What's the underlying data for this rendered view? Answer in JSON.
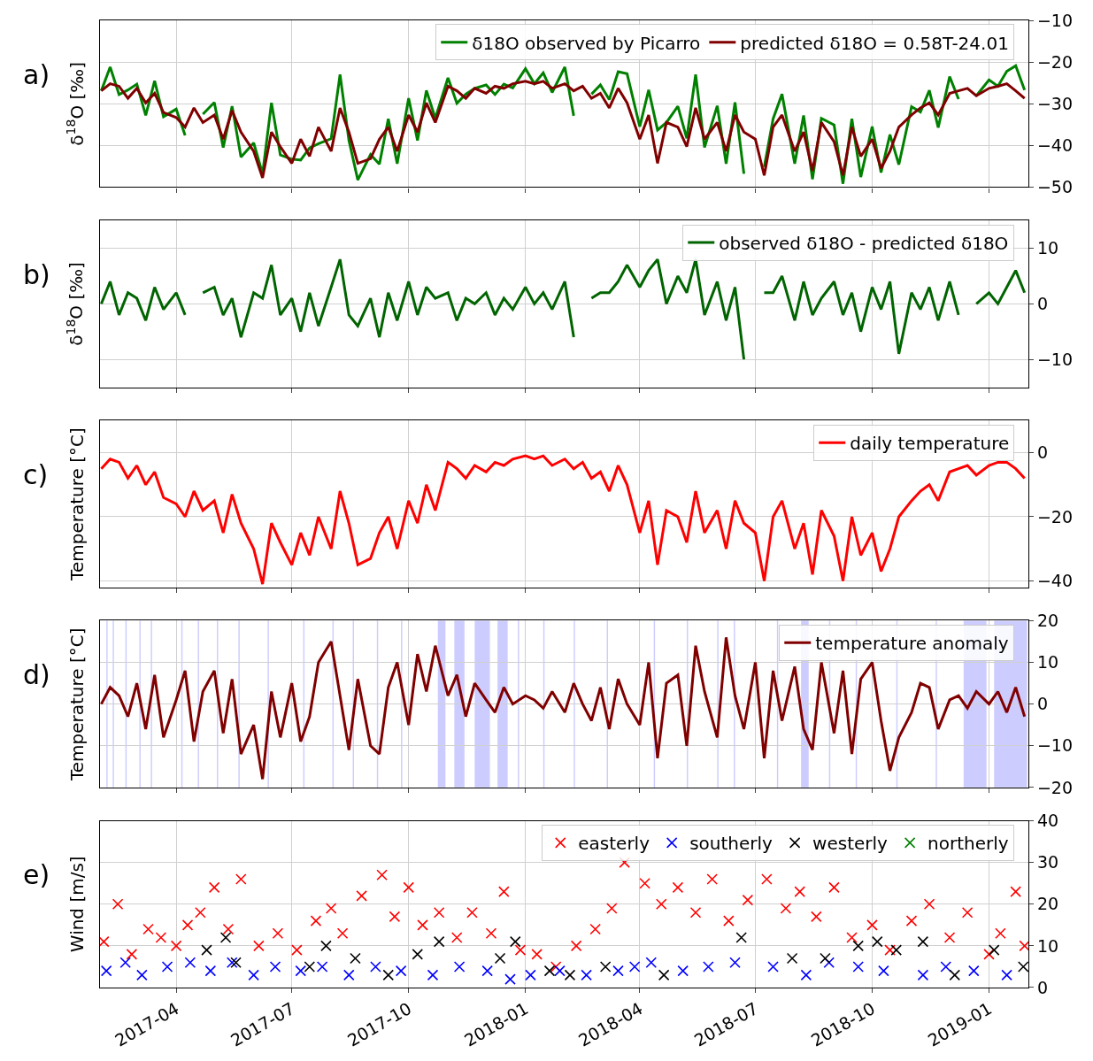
{
  "chart_data": [
    {
      "type": "line",
      "ylabel": "δ$^{18}$O [‰]",
      "annotations": [
        "a)"
      ],
      "legend": "top right",
      "grid": true,
      "tick_labels": "y",
      "line_style": "solid",
      "xlim": [
        "2017-01-31",
        "2019-02-01"
      ],
      "xticks": [
        "2017-04-01",
        "2017-07-01",
        "2017-10-01",
        "2018-01-01",
        "2018-04-01",
        "2018-07-01",
        "2018-10-01",
        "2019-01-01"
      ],
      "ylim": [
        -50,
        -10
      ],
      "yticks": [
        -50,
        -40,
        -30,
        -20,
        -10
      ],
      "x": [
        "2017-02-01",
        "2017-02-08",
        "2017-02-15",
        "2017-02-22",
        "2017-03-01",
        "2017-03-08",
        "2017-03-15",
        "2017-03-22",
        "2017-04-01",
        "2017-04-08",
        "2017-04-15",
        "2017-04-22",
        "2017-05-01",
        "2017-05-08",
        "2017-05-15",
        "2017-05-22",
        "2017-06-01",
        "2017-06-08",
        "2017-06-15",
        "2017-06-22",
        "2017-07-01",
        "2017-07-08",
        "2017-07-15",
        "2017-07-22",
        "2017-08-01",
        "2017-08-08",
        "2017-08-15",
        "2017-08-22",
        "2017-09-01",
        "2017-09-08",
        "2017-09-15",
        "2017-09-22",
        "2017-10-01",
        "2017-10-08",
        "2017-10-15",
        "2017-10-22",
        "2017-11-01",
        "2017-11-08",
        "2017-11-15",
        "2017-11-22",
        "2017-12-01",
        "2017-12-08",
        "2017-12-15",
        "2017-12-22",
        "2018-01-01",
        "2018-01-08",
        "2018-01-15",
        "2018-01-22",
        "2018-02-01",
        "2018-02-08",
        "2018-02-15",
        "2018-02-22",
        "2018-03-01",
        "2018-03-08",
        "2018-03-15",
        "2018-03-22",
        "2018-04-01",
        "2018-04-08",
        "2018-04-15",
        "2018-04-22",
        "2018-05-01",
        "2018-05-08",
        "2018-05-15",
        "2018-05-22",
        "2018-06-01",
        "2018-06-08",
        "2018-06-15",
        "2018-06-22",
        "2018-07-01",
        "2018-07-08",
        "2018-07-15",
        "2018-07-22",
        "2018-08-01",
        "2018-08-08",
        "2018-08-15",
        "2018-08-22",
        "2018-09-01",
        "2018-09-08",
        "2018-09-15",
        "2018-09-22",
        "2018-10-01",
        "2018-10-08",
        "2018-10-15",
        "2018-10-22",
        "2018-11-01",
        "2018-11-08",
        "2018-11-15",
        "2018-11-22",
        "2018-12-01",
        "2018-12-08",
        "2018-12-15",
        "2018-12-22",
        "2019-01-01",
        "2019-01-08",
        "2019-01-15",
        "2019-01-22",
        "2019-01-29"
      ],
      "series": [
        {
          "name": "δ18O observed by Picarro",
          "color": "#008000",
          "values": [
            -26.9,
            -21.2,
            -27.8,
            -26.7,
            -25.3,
            -32.8,
            -24.5,
            -33.1,
            -31.3,
            -37.6,
            null,
            -32.5,
            -29.7,
            -40.5,
            -30.6,
            -42.8,
            -39.4,
            -46.8,
            -29.8,
            -42.3,
            -43.3,
            -43.5,
            -40.6,
            -39.6,
            -38.4,
            -23.0,
            -38.8,
            -48.3,
            -42.2,
            -44.5,
            -33.6,
            -44.4,
            -28.7,
            -38.8,
            -26.8,
            -33.5,
            -23.8,
            -29.9,
            -27.7,
            -26.3,
            -25.5,
            -27.8,
            -25.3,
            -26.2,
            -21.6,
            -25.2,
            -22.6,
            -27.3,
            -21.2,
            -32.9,
            null,
            -27.7,
            -25.5,
            -29.0,
            -22.3,
            -22.8,
            -35.5,
            -26.7,
            -36.3,
            -34.5,
            -30.6,
            -38.3,
            -23.0,
            -40.5,
            -30.5,
            -44.4,
            -29.7,
            -46.8,
            null,
            -45.2,
            -33.6,
            -27.7,
            -44.4,
            -32.8,
            -48.1,
            -33.5,
            -35.1,
            -49.2,
            -33.6,
            -47.6,
            -35.5,
            -46.5,
            -37.4,
            -44.6,
            -30.7,
            -32.0,
            -26.8,
            -35.7,
            -23.5,
            -28.9,
            null,
            -28.1,
            -24.3,
            -25.8,
            -22.2,
            -20.9,
            -26.7
          ]
        },
        {
          "name": "predicted δ18O = 0.58T-24.01",
          "color": "#800000",
          "values": [
            -26.9,
            -25.2,
            -25.8,
            -28.7,
            -26.3,
            -29.8,
            -27.5,
            -32.1,
            -33.3,
            -35.6,
            -31.0,
            -34.5,
            -32.7,
            -38.5,
            -31.6,
            -36.8,
            -41.4,
            -47.8,
            -36.8,
            -40.3,
            -44.3,
            -38.5,
            -42.6,
            -35.6,
            -41.4,
            -31.0,
            -36.8,
            -44.3,
            -43.2,
            -38.5,
            -35.6,
            -41.4,
            -32.7,
            -36.8,
            -29.8,
            -34.5,
            -25.8,
            -26.9,
            -28.7,
            -26.3,
            -27.5,
            -25.8,
            -26.3,
            -25.2,
            -24.6,
            -25.2,
            -24.6,
            -26.3,
            -25.2,
            -26.9,
            -25.8,
            -28.7,
            -27.5,
            -31.0,
            -26.3,
            -29.8,
            -38.5,
            -32.7,
            -44.3,
            -34.5,
            -35.6,
            -40.3,
            -31.0,
            -38.5,
            -34.5,
            -41.4,
            -32.7,
            -36.8,
            -38.5,
            -47.2,
            -35.6,
            -32.7,
            -41.4,
            -36.8,
            -46.1,
            -34.5,
            -39.1,
            -47.2,
            -35.6,
            -42.6,
            -38.5,
            -45.5,
            -41.4,
            -35.6,
            -32.7,
            -31.0,
            -29.8,
            -32.7,
            -27.5,
            -26.9,
            -26.3,
            -28.1,
            -26.3,
            -25.8,
            -25.2,
            -26.9,
            -28.7
          ]
        }
      ]
    },
    {
      "type": "line",
      "ylabel": "δ$^{18}$O [‰]",
      "annotations": [
        "b)"
      ],
      "legend": "top right",
      "grid": true,
      "tick_labels": "y",
      "xlim": [
        "2017-01-31",
        "2019-02-01"
      ],
      "xticks": [
        "2017-04-01",
        "2017-07-01",
        "2017-10-01",
        "2018-01-01",
        "2018-04-01",
        "2018-07-01",
        "2018-10-01",
        "2019-01-01"
      ],
      "ylim": [
        -15,
        15
      ],
      "yticks": [
        -10,
        0,
        10
      ],
      "x": [
        "2017-02-01",
        "2017-02-08",
        "2017-02-15",
        "2017-02-22",
        "2017-03-01",
        "2017-03-08",
        "2017-03-15",
        "2017-03-22",
        "2017-04-01",
        "2017-04-08",
        "2017-04-15",
        "2017-04-22",
        "2017-05-01",
        "2017-05-08",
        "2017-05-15",
        "2017-05-22",
        "2017-06-01",
        "2017-06-08",
        "2017-06-15",
        "2017-06-22",
        "2017-07-01",
        "2017-07-08",
        "2017-07-15",
        "2017-07-22",
        "2017-08-01",
        "2017-08-08",
        "2017-08-15",
        "2017-08-22",
        "2017-09-01",
        "2017-09-08",
        "2017-09-15",
        "2017-09-22",
        "2017-10-01",
        "2017-10-08",
        "2017-10-15",
        "2017-10-22",
        "2017-11-01",
        "2017-11-08",
        "2017-11-15",
        "2017-11-22",
        "2017-12-01",
        "2017-12-08",
        "2017-12-15",
        "2017-12-22",
        "2018-01-01",
        "2018-01-08",
        "2018-01-15",
        "2018-01-22",
        "2018-02-01",
        "2018-02-08",
        "2018-02-15",
        "2018-02-22",
        "2018-03-01",
        "2018-03-08",
        "2018-03-15",
        "2018-03-22",
        "2018-04-01",
        "2018-04-08",
        "2018-04-15",
        "2018-04-22",
        "2018-05-01",
        "2018-05-08",
        "2018-05-15",
        "2018-05-22",
        "2018-06-01",
        "2018-06-08",
        "2018-06-15",
        "2018-06-22",
        "2018-07-01",
        "2018-07-08",
        "2018-07-15",
        "2018-07-22",
        "2018-08-01",
        "2018-08-08",
        "2018-08-15",
        "2018-08-22",
        "2018-09-01",
        "2018-09-08",
        "2018-09-15",
        "2018-09-22",
        "2018-10-01",
        "2018-10-08",
        "2018-10-15",
        "2018-10-22",
        "2018-11-01",
        "2018-11-08",
        "2018-11-15",
        "2018-11-22",
        "2018-12-01",
        "2018-12-08",
        "2018-12-15",
        "2018-12-22",
        "2019-01-01",
        "2019-01-08",
        "2019-01-15",
        "2019-01-22",
        "2019-01-29"
      ],
      "series": [
        {
          "name": "observed δ18O - predicted δ18O",
          "color": "#006400",
          "values": [
            0,
            4,
            -2,
            2,
            1,
            -3,
            3,
            -1,
            2,
            -2,
            null,
            2,
            3,
            -2,
            1,
            -6,
            2,
            1,
            7,
            -2,
            1,
            -5,
            2,
            -4,
            3,
            8,
            -2,
            -4,
            1,
            -6,
            2,
            -3,
            4,
            -2,
            3,
            1,
            2,
            -3,
            1,
            0,
            2,
            -2,
            1,
            -1,
            3,
            0,
            2,
            -1,
            4,
            -6,
            null,
            1,
            2,
            2,
            4,
            7,
            3,
            6,
            8,
            0,
            5,
            2,
            8,
            -2,
            4,
            -3,
            3,
            -10,
            null,
            2,
            2,
            5,
            -3,
            4,
            -2,
            1,
            4,
            -2,
            2,
            -5,
            3,
            -1,
            4,
            -9,
            2,
            -1,
            3,
            -3,
            4,
            -2,
            null,
            0,
            2,
            0,
            3,
            6,
            2
          ]
        }
      ]
    },
    {
      "type": "line",
      "ylabel": "Temperature [°C]",
      "annotations": [
        "c)"
      ],
      "legend": "top right",
      "grid": true,
      "tick_labels": "y",
      "xlim": [
        "2017-01-31",
        "2019-02-01"
      ],
      "xticks": [
        "2017-04-01",
        "2017-07-01",
        "2017-10-01",
        "2018-01-01",
        "2018-04-01",
        "2018-07-01",
        "2018-10-01",
        "2019-01-01"
      ],
      "ylim": [
        -42,
        10
      ],
      "yticks": [
        -40,
        -20,
        0
      ],
      "x": [
        "2017-02-01",
        "2017-02-08",
        "2017-02-15",
        "2017-02-22",
        "2017-03-01",
        "2017-03-08",
        "2017-03-15",
        "2017-03-22",
        "2017-04-01",
        "2017-04-08",
        "2017-04-15",
        "2017-04-22",
        "2017-05-01",
        "2017-05-08",
        "2017-05-15",
        "2017-05-22",
        "2017-06-01",
        "2017-06-08",
        "2017-06-15",
        "2017-06-22",
        "2017-07-01",
        "2017-07-08",
        "2017-07-15",
        "2017-07-22",
        "2017-08-01",
        "2017-08-08",
        "2017-08-15",
        "2017-08-22",
        "2017-09-01",
        "2017-09-08",
        "2017-09-15",
        "2017-09-22",
        "2017-10-01",
        "2017-10-08",
        "2017-10-15",
        "2017-10-22",
        "2017-11-01",
        "2017-11-08",
        "2017-11-15",
        "2017-11-22",
        "2017-12-01",
        "2017-12-08",
        "2017-12-15",
        "2017-12-22",
        "2018-01-01",
        "2018-01-08",
        "2018-01-15",
        "2018-01-22",
        "2018-02-01",
        "2018-02-08",
        "2018-02-15",
        "2018-02-22",
        "2018-03-01",
        "2018-03-08",
        "2018-03-15",
        "2018-03-22",
        "2018-04-01",
        "2018-04-08",
        "2018-04-15",
        "2018-04-22",
        "2018-05-01",
        "2018-05-08",
        "2018-05-15",
        "2018-05-22",
        "2018-06-01",
        "2018-06-08",
        "2018-06-15",
        "2018-06-22",
        "2018-07-01",
        "2018-07-08",
        "2018-07-15",
        "2018-07-22",
        "2018-08-01",
        "2018-08-08",
        "2018-08-15",
        "2018-08-22",
        "2018-09-01",
        "2018-09-08",
        "2018-09-15",
        "2018-09-22",
        "2018-10-01",
        "2018-10-08",
        "2018-10-15",
        "2018-10-22",
        "2018-11-01",
        "2018-11-08",
        "2018-11-15",
        "2018-11-22",
        "2018-12-01",
        "2018-12-08",
        "2018-12-15",
        "2018-12-22",
        "2019-01-01",
        "2019-01-08",
        "2019-01-15",
        "2019-01-22",
        "2019-01-29"
      ],
      "series": [
        {
          "name": "daily temperature",
          "color": "#ff0000",
          "values": [
            -5,
            -2,
            -3,
            -8,
            -4,
            -10,
            -6,
            -14,
            -16,
            -20,
            -12,
            -18,
            -15,
            -25,
            -13,
            -22,
            -30,
            -41,
            -22,
            -28,
            -35,
            -25,
            -32,
            -20,
            -30,
            -12,
            -22,
            -35,
            -33,
            -25,
            -20,
            -30,
            -15,
            -22,
            -10,
            -18,
            -3,
            -5,
            -8,
            -4,
            -6,
            -3,
            -4,
            -2,
            -1,
            -2,
            -1,
            -4,
            -2,
            -5,
            -3,
            -8,
            -6,
            -12,
            -4,
            -10,
            -25,
            -15,
            -35,
            -18,
            -20,
            -28,
            -12,
            -25,
            -18,
            -30,
            -15,
            -22,
            -25,
            -40,
            -20,
            -15,
            -30,
            -22,
            -38,
            -18,
            -26,
            -40,
            -20,
            -32,
            -25,
            -37,
            -30,
            -20,
            -15,
            -12,
            -10,
            -15,
            -6,
            -5,
            -4,
            -7,
            -4,
            -3,
            -3,
            -5,
            -8
          ]
        }
      ]
    },
    {
      "type": "line",
      "ylabel": "Temperature [°C]",
      "annotations": [
        "d)"
      ],
      "legend": "top right",
      "grid": true,
      "tick_labels": "y",
      "xlim": [
        "2017-01-31",
        "2019-02-01"
      ],
      "xticks": [
        "2017-04-01",
        "2017-07-01",
        "2017-10-01",
        "2018-01-01",
        "2018-04-01",
        "2018-07-01",
        "2018-10-01",
        "2019-01-01"
      ],
      "ylim": [
        -20,
        20
      ],
      "yticks": [
        -20,
        -10,
        0,
        10,
        20
      ],
      "bands": [
        {
          "axis": "x",
          "from": "2017-02-05",
          "to": "2017-02-06",
          "color": "#aaaaff"
        },
        {
          "axis": "x",
          "from": "2017-02-10",
          "to": "2017-02-11",
          "color": "#aaaaff"
        },
        {
          "axis": "x",
          "from": "2017-02-20",
          "to": "2017-02-21",
          "color": "#aaaaff"
        },
        {
          "axis": "x",
          "from": "2017-03-03",
          "to": "2017-03-04",
          "color": "#aaaaff"
        },
        {
          "axis": "x",
          "from": "2017-03-12",
          "to": "2017-03-13",
          "color": "#aaaaff"
        },
        {
          "axis": "x",
          "from": "2017-04-05",
          "to": "2017-04-06",
          "color": "#aaaaff"
        },
        {
          "axis": "x",
          "from": "2017-04-18",
          "to": "2017-04-19",
          "color": "#aaaaff"
        },
        {
          "axis": "x",
          "from": "2017-05-03",
          "to": "2017-05-04",
          "color": "#aaaaff"
        },
        {
          "axis": "x",
          "from": "2017-05-20",
          "to": "2017-05-21",
          "color": "#aaaaff"
        },
        {
          "axis": "x",
          "from": "2017-06-12",
          "to": "2017-06-13",
          "color": "#aaaaff"
        },
        {
          "axis": "x",
          "from": "2017-07-10",
          "to": "2017-07-11",
          "color": "#aaaaff"
        },
        {
          "axis": "x",
          "from": "2017-08-02",
          "to": "2017-08-03",
          "color": "#aaaaff"
        },
        {
          "axis": "x",
          "from": "2017-08-18",
          "to": "2017-08-19",
          "color": "#aaaaff"
        },
        {
          "axis": "x",
          "from": "2017-09-06",
          "to": "2017-09-07",
          "color": "#aaaaff"
        },
        {
          "axis": "x",
          "from": "2017-09-25",
          "to": "2017-09-26",
          "color": "#aaaaff"
        },
        {
          "axis": "x",
          "from": "2017-10-24",
          "to": "2017-10-30",
          "color": "#aaaaff"
        },
        {
          "axis": "x",
          "from": "2017-11-06",
          "to": "2017-11-14",
          "color": "#aaaaff"
        },
        {
          "axis": "x",
          "from": "2017-11-22",
          "to": "2017-12-04",
          "color": "#aaaaff"
        },
        {
          "axis": "x",
          "from": "2017-12-10",
          "to": "2017-12-18",
          "color": "#aaaaff"
        },
        {
          "axis": "x",
          "from": "2017-12-26",
          "to": "2017-12-27",
          "color": "#aaaaff"
        },
        {
          "axis": "x",
          "from": "2018-01-15",
          "to": "2018-01-16",
          "color": "#aaaaff"
        },
        {
          "axis": "x",
          "from": "2018-02-08",
          "to": "2018-02-09",
          "color": "#aaaaff"
        },
        {
          "axis": "x",
          "from": "2018-03-06",
          "to": "2018-03-07",
          "color": "#aaaaff"
        },
        {
          "axis": "x",
          "from": "2018-04-12",
          "to": "2018-04-13",
          "color": "#aaaaff"
        },
        {
          "axis": "x",
          "from": "2018-05-08",
          "to": "2018-05-09",
          "color": "#aaaaff"
        },
        {
          "axis": "x",
          "from": "2018-06-01",
          "to": "2018-06-02",
          "color": "#aaaaff"
        },
        {
          "axis": "x",
          "from": "2018-06-14",
          "to": "2018-06-15",
          "color": "#aaaaff"
        },
        {
          "axis": "x",
          "from": "2018-07-18",
          "to": "2018-07-19",
          "color": "#aaaaff"
        },
        {
          "axis": "x",
          "from": "2018-08-06",
          "to": "2018-08-12",
          "color": "#aaaaff"
        },
        {
          "axis": "x",
          "from": "2018-08-28",
          "to": "2018-08-29",
          "color": "#aaaaff"
        },
        {
          "axis": "x",
          "from": "2018-09-18",
          "to": "2018-09-19",
          "color": "#aaaaff"
        },
        {
          "axis": "x",
          "from": "2018-10-20",
          "to": "2018-10-21",
          "color": "#aaaaff"
        },
        {
          "axis": "x",
          "from": "2018-11-20",
          "to": "2018-11-21",
          "color": "#aaaaff"
        },
        {
          "axis": "x",
          "from": "2018-12-12",
          "to": "2018-12-30",
          "color": "#aaaaff"
        },
        {
          "axis": "x",
          "from": "2019-01-05",
          "to": "2019-01-31",
          "color": "#aaaaff"
        }
      ],
      "x": [
        "2017-02-01",
        "2017-02-08",
        "2017-02-15",
        "2017-02-22",
        "2017-03-01",
        "2017-03-08",
        "2017-03-15",
        "2017-03-22",
        "2017-04-01",
        "2017-04-08",
        "2017-04-15",
        "2017-04-22",
        "2017-05-01",
        "2017-05-08",
        "2017-05-15",
        "2017-05-22",
        "2017-06-01",
        "2017-06-08",
        "2017-06-15",
        "2017-06-22",
        "2017-07-01",
        "2017-07-08",
        "2017-07-15",
        "2017-07-22",
        "2017-08-01",
        "2017-08-08",
        "2017-08-15",
        "2017-08-22",
        "2017-09-01",
        "2017-09-08",
        "2017-09-15",
        "2017-09-22",
        "2017-10-01",
        "2017-10-08",
        "2017-10-15",
        "2017-10-22",
        "2017-11-01",
        "2017-11-08",
        "2017-11-15",
        "2017-11-22",
        "2017-12-01",
        "2017-12-08",
        "2017-12-15",
        "2017-12-22",
        "2018-01-01",
        "2018-01-08",
        "2018-01-15",
        "2018-01-22",
        "2018-02-01",
        "2018-02-08",
        "2018-02-15",
        "2018-02-22",
        "2018-03-01",
        "2018-03-08",
        "2018-03-15",
        "2018-03-22",
        "2018-04-01",
        "2018-04-08",
        "2018-04-15",
        "2018-04-22",
        "2018-05-01",
        "2018-05-08",
        "2018-05-15",
        "2018-05-22",
        "2018-06-01",
        "2018-06-08",
        "2018-06-15",
        "2018-06-22",
        "2018-07-01",
        "2018-07-08",
        "2018-07-15",
        "2018-07-22",
        "2018-08-01",
        "2018-08-08",
        "2018-08-15",
        "2018-08-22",
        "2018-09-01",
        "2018-09-08",
        "2018-09-15",
        "2018-09-22",
        "2018-10-01",
        "2018-10-08",
        "2018-10-15",
        "2018-10-22",
        "2018-11-01",
        "2018-11-08",
        "2018-11-15",
        "2018-11-22",
        "2018-12-01",
        "2018-12-08",
        "2018-12-15",
        "2018-12-22",
        "2019-01-01",
        "2019-01-08",
        "2019-01-15",
        "2019-01-22",
        "2019-01-29"
      ],
      "series": [
        {
          "name": "temperature anomaly",
          "color": "#800000",
          "values": [
            0,
            4,
            2,
            -3,
            5,
            -6,
            7,
            -8,
            1,
            8,
            -9,
            3,
            8,
            -7,
            6,
            -12,
            -5,
            -18,
            3,
            -8,
            5,
            -9,
            -3,
            10,
            15,
            2,
            -11,
            6,
            -10,
            -12,
            4,
            10,
            -5,
            12,
            3,
            14,
            2,
            7,
            -3,
            5,
            1,
            -2,
            4,
            0,
            2,
            1,
            -1,
            3,
            -2,
            5,
            0,
            -4,
            4,
            -6,
            6,
            0,
            -5,
            10,
            -13,
            5,
            7,
            -10,
            14,
            3,
            -8,
            16,
            2,
            -6,
            10,
            -13,
            8,
            -4,
            9,
            -6,
            -11,
            10,
            -7,
            8,
            -12,
            6,
            10,
            -4,
            -16,
            -8,
            -2,
            5,
            4,
            -6,
            1,
            2,
            -1,
            3,
            0,
            3,
            -2,
            4,
            -3
          ]
        }
      ]
    },
    {
      "type": "scatter",
      "ylabel": "Wind [m/s]",
      "annotations": [
        "e)"
      ],
      "legend": "top right",
      "grid": true,
      "xlim": [
        "2017-01-31",
        "2019-02-01"
      ],
      "xticks": [
        {
          "value": "2017-04-01",
          "label": "2017-04"
        },
        {
          "value": "2017-07-01",
          "label": "2017-07"
        },
        {
          "value": "2017-10-01",
          "label": "2017-10"
        },
        {
          "value": "2018-01-01",
          "label": "2018-01"
        },
        {
          "value": "2018-04-01",
          "label": "2018-04"
        },
        {
          "value": "2018-07-01",
          "label": "2018-07"
        },
        {
          "value": "2018-10-01",
          "label": "2018-10"
        },
        {
          "value": "2019-01-01",
          "label": "2019-01"
        }
      ],
      "ylim": [
        0,
        40
      ],
      "yticks": [
        0,
        10,
        20,
        30,
        40
      ],
      "series": [
        {
          "name": "easterly",
          "color": "#ff0000",
          "marker": "cross",
          "x": [
            "2017-02-03",
            "2017-02-14",
            "2017-02-25",
            "2017-03-10",
            "2017-03-20",
            "2017-04-01",
            "2017-04-10",
            "2017-04-20",
            "2017-05-01",
            "2017-05-12",
            "2017-05-22",
            "2017-06-05",
            "2017-06-20",
            "2017-07-05",
            "2017-07-20",
            "2017-08-01",
            "2017-08-10",
            "2017-08-25",
            "2017-09-10",
            "2017-09-20",
            "2017-10-01",
            "2017-10-12",
            "2017-10-25",
            "2017-11-08",
            "2017-11-20",
            "2017-12-05",
            "2017-12-15",
            "2017-12-28",
            "2018-01-10",
            "2018-01-25",
            "2018-02-10",
            "2018-02-25",
            "2018-03-10",
            "2018-03-20",
            "2018-04-05",
            "2018-04-18",
            "2018-05-01",
            "2018-05-15",
            "2018-05-28",
            "2018-06-10",
            "2018-06-25",
            "2018-07-10",
            "2018-07-25",
            "2018-08-05",
            "2018-08-18",
            "2018-09-01",
            "2018-09-15",
            "2018-10-01",
            "2018-10-15",
            "2018-11-01",
            "2018-11-15",
            "2018-12-01",
            "2018-12-15",
            "2019-01-01",
            "2019-01-10",
            "2019-01-22",
            "2019-01-29"
          ],
          "values": [
            11,
            20,
            8,
            14,
            12,
            10,
            15,
            18,
            24,
            14,
            26,
            10,
            13,
            9,
            16,
            19,
            13,
            22,
            27,
            17,
            24,
            15,
            18,
            12,
            18,
            13,
            23,
            9,
            8,
            5,
            10,
            14,
            19,
            30,
            25,
            20,
            24,
            18,
            26,
            16,
            21,
            26,
            19,
            23,
            17,
            24,
            12,
            15,
            9,
            16,
            20,
            12,
            18,
            8,
            13,
            23,
            10
          ]
        },
        {
          "name": "southerly",
          "color": "#0000ff",
          "marker": "cross",
          "x": [
            "2017-02-05",
            "2017-02-20",
            "2017-03-05",
            "2017-03-25",
            "2017-04-12",
            "2017-04-28",
            "2017-05-15",
            "2017-06-01",
            "2017-06-18",
            "2017-07-08",
            "2017-07-25",
            "2017-08-15",
            "2017-09-05",
            "2017-09-25",
            "2017-10-20",
            "2017-11-10",
            "2017-12-02",
            "2017-12-20",
            "2018-01-05",
            "2018-01-28",
            "2018-02-18",
            "2018-03-15",
            "2018-03-28",
            "2018-04-10",
            "2018-05-05",
            "2018-05-25",
            "2018-06-15",
            "2018-07-15",
            "2018-08-10",
            "2018-08-28",
            "2018-09-20",
            "2018-10-10",
            "2018-11-10",
            "2018-11-28",
            "2018-12-20",
            "2019-01-15"
          ],
          "values": [
            4,
            6,
            3,
            5,
            6,
            4,
            6,
            3,
            5,
            4,
            5,
            3,
            5,
            4,
            3,
            5,
            4,
            2,
            3,
            4,
            3,
            4,
            5,
            6,
            4,
            5,
            6,
            5,
            3,
            6,
            5,
            4,
            3,
            5,
            4,
            3
          ]
        },
        {
          "name": "westerly",
          "color": "#000000",
          "marker": "cross",
          "x": [
            "2017-04-25",
            "2017-05-10",
            "2017-05-18",
            "2017-07-15",
            "2017-07-28",
            "2017-08-20",
            "2017-09-15",
            "2017-10-08",
            "2017-10-25",
            "2017-12-12",
            "2017-12-24",
            "2018-01-20",
            "2018-02-05",
            "2018-03-05",
            "2018-04-20",
            "2018-06-20",
            "2018-07-30",
            "2018-08-25",
            "2018-09-20",
            "2018-10-05",
            "2018-10-20",
            "2018-11-10",
            "2018-12-05",
            "2019-01-05",
            "2019-01-28"
          ],
          "values": [
            9,
            12,
            6,
            5,
            10,
            7,
            3,
            8,
            11,
            7,
            11,
            4,
            3,
            5,
            3,
            12,
            7,
            7,
            10,
            11,
            9,
            11,
            3,
            9,
            5
          ]
        },
        {
          "name": "northerly",
          "color": "#008000",
          "marker": "cross"
        }
      ]
    }
  ]
}
